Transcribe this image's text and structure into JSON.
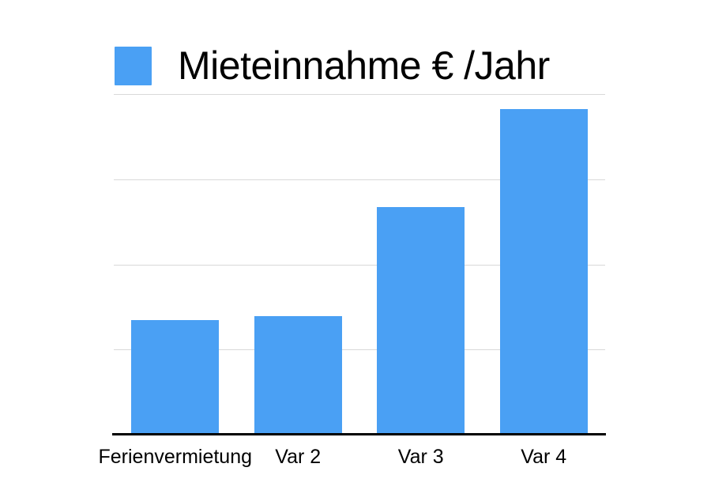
{
  "chart_data": {
    "type": "bar",
    "title": "Mieteinnahme € /Jahr",
    "categories": [
      "Ferienvermietung",
      "Var 2",
      "Var 3",
      "Var 4"
    ],
    "values": [
      1.35,
      1.39,
      2.67,
      3.82
    ],
    "ylim": [
      0,
      4
    ],
    "ticks": [
      1,
      2,
      3,
      4
    ],
    "note": "y-axis has no visible tick labels; values estimated in gridline units (1 unit = 1 gridline interval)",
    "grid": "horizontal gridlines on, unlabeled",
    "legend_position": "top-left, swatch beside title",
    "xlabel": "",
    "ylabel": "",
    "colors": {
      "bar": "#4AA0F4",
      "gridline": "#D9D9D9",
      "axis": "#000000",
      "text": "#000000",
      "background": "#FFFFFF"
    }
  }
}
